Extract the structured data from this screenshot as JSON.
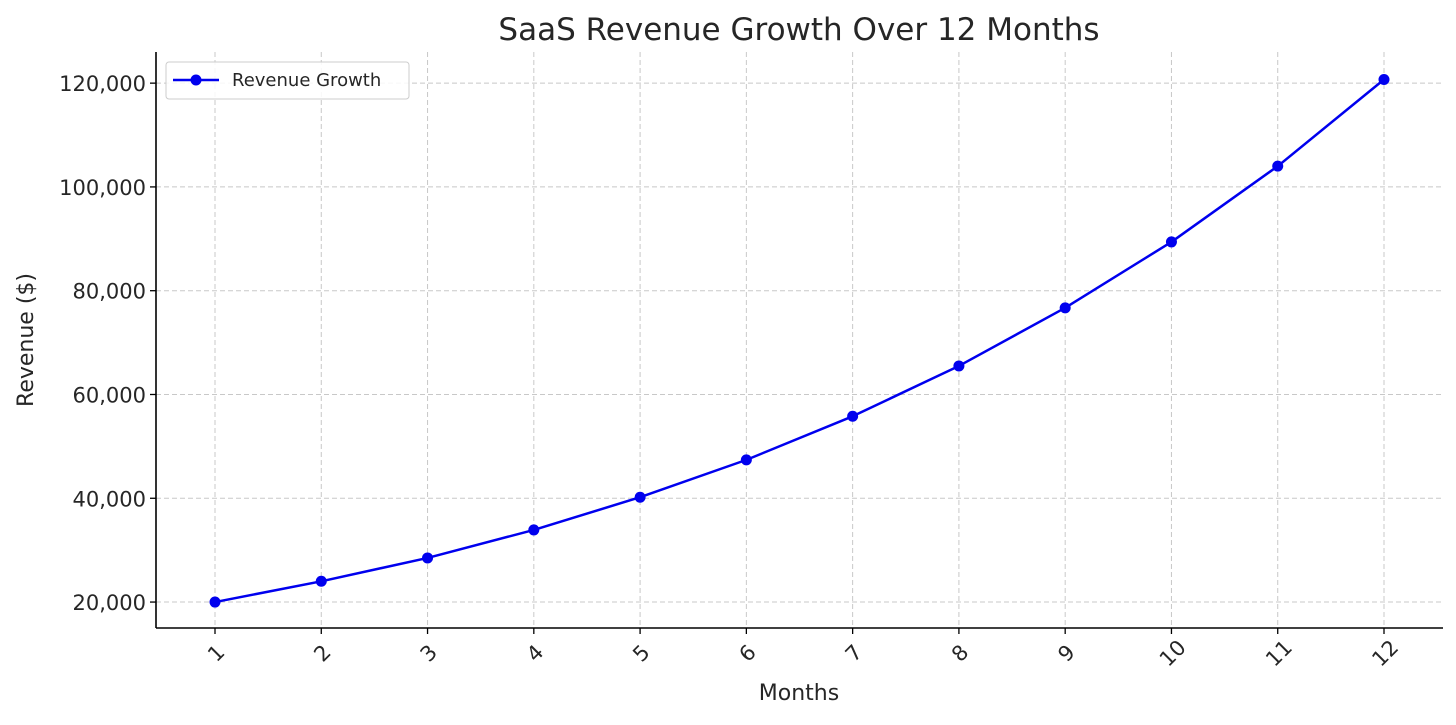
{
  "chart_data": {
    "type": "line",
    "title": "SaaS Revenue Growth Over 12 Months",
    "xlabel": "Months",
    "ylabel": "Revenue ($)",
    "x": [
      1,
      2,
      3,
      4,
      5,
      6,
      7,
      8,
      9,
      10,
      11,
      12
    ],
    "x_tick_labels": [
      "1",
      "2",
      "3",
      "4",
      "5",
      "6",
      "7",
      "8",
      "9",
      "10",
      "11",
      "12"
    ],
    "y_ticks": [
      20000,
      40000,
      60000,
      80000,
      100000,
      120000
    ],
    "y_tick_labels": [
      "20,000",
      "40,000",
      "60,000",
      "80,000",
      "100,000",
      "120,000"
    ],
    "ylim": [
      15000,
      126000
    ],
    "grid": true,
    "legend_position": "top-left",
    "series": [
      {
        "name": "Revenue Growth",
        "color": "#0000ee",
        "marker": "circle",
        "values": [
          20000,
          24000,
          28500,
          33900,
          40200,
          47400,
          55800,
          65500,
          76700,
          89400,
          104000,
          120700
        ]
      }
    ]
  }
}
